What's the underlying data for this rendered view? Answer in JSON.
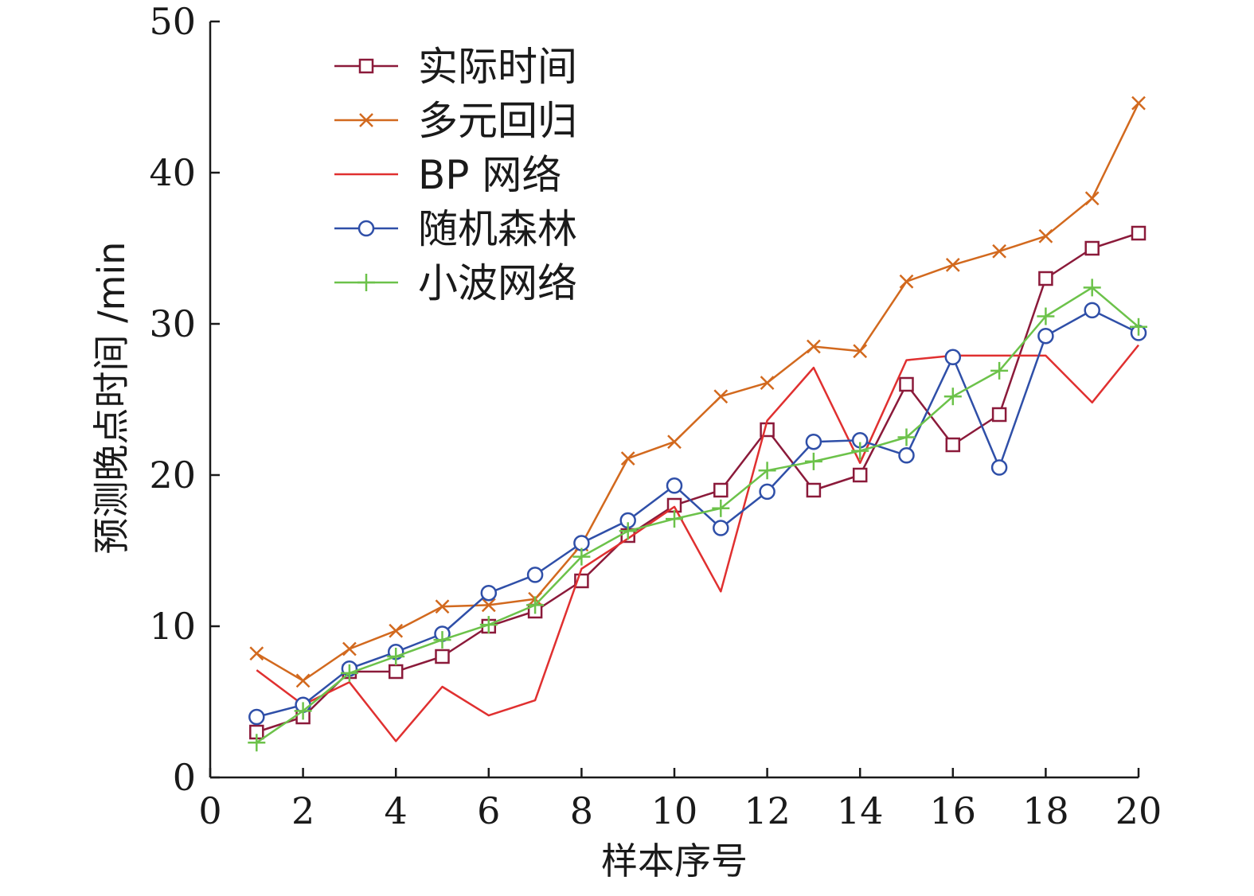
{
  "chart_data": {
    "type": "line",
    "title": "",
    "xlabel": "样本序号",
    "ylabel": "预测晚点时间 /min",
    "xlim": [
      0,
      20
    ],
    "ylim": [
      0,
      50
    ],
    "xticks": [
      0,
      2,
      4,
      6,
      8,
      10,
      12,
      14,
      16,
      18,
      20
    ],
    "yticks": [
      0,
      10,
      20,
      30,
      40,
      50
    ],
    "grid": false,
    "legend_position": "top-left",
    "x": [
      1,
      2,
      3,
      4,
      5,
      6,
      7,
      8,
      9,
      10,
      11,
      12,
      13,
      14,
      15,
      16,
      17,
      18,
      19,
      20
    ],
    "series": [
      {
        "name": "实际时间",
        "color": "#8b1a3a",
        "marker": "square",
        "values": [
          3,
          4,
          7,
          7,
          8,
          10,
          11,
          13,
          16,
          18,
          19,
          23,
          19,
          20,
          26,
          22,
          24,
          33,
          35,
          36
        ]
      },
      {
        "name": "多元回归",
        "color": "#d2691e",
        "marker": "x",
        "values": [
          8.2,
          6.4,
          8.5,
          9.7,
          11.3,
          11.4,
          11.8,
          15.4,
          21.1,
          22.2,
          25.2,
          26.1,
          28.5,
          28.2,
          32.8,
          33.9,
          34.8,
          35.8,
          38.3,
          44.6
        ]
      },
      {
        "name": "BP 网络",
        "color": "#e03030",
        "marker": "none",
        "values": [
          7.1,
          4.8,
          6.3,
          2.4,
          6,
          4.1,
          5.1,
          13.8,
          15.8,
          17.9,
          12.3,
          23.6,
          27.1,
          20.8,
          27.6,
          27.9,
          27.9,
          27.9,
          24.8,
          28.6
        ]
      },
      {
        "name": "随机森林",
        "color": "#2f4fa8",
        "marker": "circle",
        "values": [
          4,
          4.8,
          7.2,
          8.3,
          9.5,
          12.2,
          13.4,
          15.5,
          17,
          19.3,
          16.5,
          18.9,
          22.2,
          22.3,
          21.3,
          27.8,
          20.5,
          29.2,
          30.9,
          29.4
        ]
      },
      {
        "name": "小波网络",
        "color": "#6cc24a",
        "marker": "plus",
        "values": [
          2.3,
          4.4,
          6.9,
          8,
          9.1,
          10.1,
          11.4,
          14.6,
          16.3,
          17.1,
          17.8,
          20.3,
          20.9,
          21.6,
          22.5,
          25.2,
          26.9,
          30.5,
          32.4,
          29.8
        ]
      }
    ]
  }
}
